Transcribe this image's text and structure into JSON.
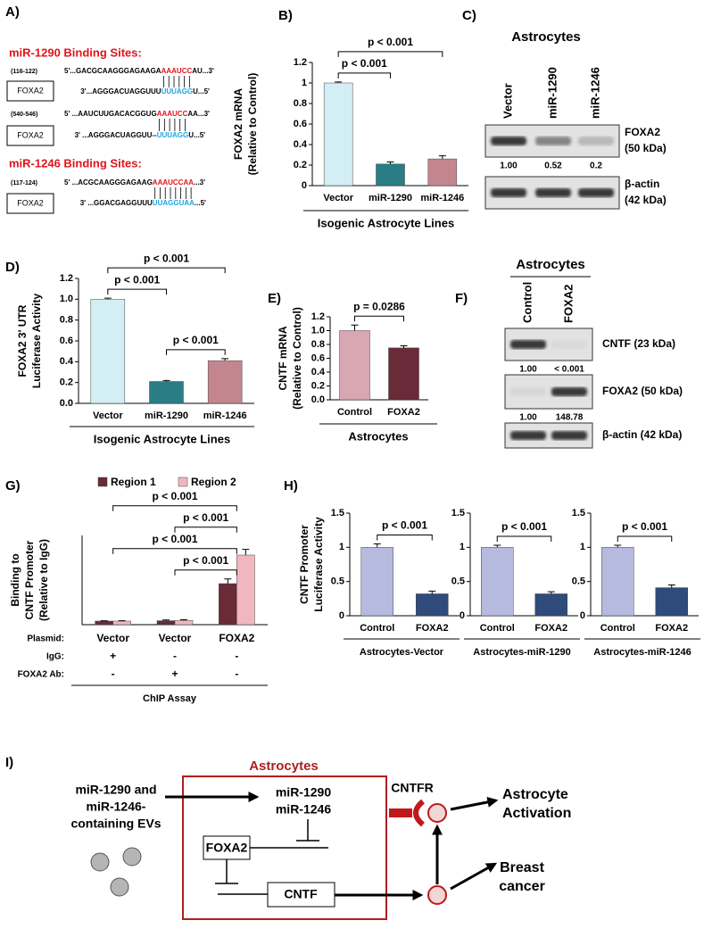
{
  "chart_data": [
    {
      "label": "B)",
      "type": "bar",
      "categories": [
        "Vector",
        "miR-1290",
        "miR-1246"
      ],
      "values": [
        1.0,
        0.21,
        0.26
      ],
      "errors": [
        0.01,
        0.02,
        0.03
      ],
      "colors": [
        "#d3eef5",
        "#2b7d85",
        "#c3868f"
      ],
      "ylabel": [
        "FOXA2 mRNA",
        "(Relative to Control)"
      ],
      "xlabel": "Isogenic Astrocyte Lines",
      "ylim": [
        0,
        1.2
      ],
      "yticks": [
        0,
        0.2,
        0.4,
        0.6,
        0.8,
        1,
        1.2
      ],
      "annotations": [
        {
          "text": "p < 0.001",
          "from": 0,
          "to": 1
        },
        {
          "text": "p < 0.001",
          "from": 0,
          "to": 2
        }
      ]
    },
    {
      "label": "D)",
      "type": "bar",
      "categories": [
        "Vector",
        "miR-1290",
        "miR-1246"
      ],
      "values": [
        1.0,
        0.21,
        0.41
      ],
      "errors": [
        0.01,
        0.01,
        0.02
      ],
      "colors": [
        "#d3eef5",
        "#2b7d85",
        "#c3868f"
      ],
      "ylabel": [
        "FOXA2 3' UTR",
        "Luciferase Activity"
      ],
      "xlabel": "Isogenic Astrocyte Lines",
      "ylim": [
        0,
        1.2
      ],
      "yticks": [
        {
          "value": 0,
          "label": "0.0"
        },
        0.2,
        0.4,
        0.6,
        0.8,
        {
          "value": 1,
          "label": "1.0"
        },
        1.2
      ],
      "annotations": [
        {
          "text": "p < 0.001",
          "from": 0,
          "to": 1
        },
        {
          "text": "p < 0.001",
          "from": 1,
          "to": 2
        },
        {
          "text": "p < 0.001",
          "from": 0,
          "to": 2
        }
      ]
    },
    {
      "label": "E)",
      "type": "bar",
      "categories": [
        "Control",
        "FOXA2"
      ],
      "values": [
        1.0,
        0.75
      ],
      "errors": [
        0.08,
        0.03
      ],
      "colors": [
        "#d8a7b1",
        "#6a2a38"
      ],
      "ylabel": [
        "CNTF mRNA",
        "(Relative to Control)"
      ],
      "xlabel": "Astrocytes",
      "ylim": [
        0,
        1.2
      ],
      "yticks": [
        {
          "value": 0,
          "label": "0.0"
        },
        0.2,
        0.4,
        0.6,
        0.8,
        {
          "value": 1,
          "label": "1.0"
        },
        1.2
      ],
      "annotations": [
        {
          "text": "p = 0.0286",
          "from": 0,
          "to": 1
        }
      ]
    },
    {
      "label": "G)",
      "type": "grouped_bar",
      "series": [
        {
          "name": "Region 1",
          "color": "#6a2a38",
          "values": [
            1.0,
            1.1,
            11.5
          ],
          "errors": [
            0.1,
            0.2,
            1.3
          ]
        },
        {
          "name": "Region 2",
          "color": "#f2b6be",
          "values": [
            1.0,
            1.2,
            19.5
          ],
          "errors": [
            0.1,
            0.2,
            1.6
          ]
        }
      ],
      "rows": [
        {
          "label": "Plasmid:",
          "cells": [
            "Vector",
            "Vector",
            "FOXA2"
          ]
        },
        {
          "label": "IgG:",
          "cells": [
            "+",
            "-",
            "-"
          ]
        },
        {
          "label": "FOXA2 Ab:",
          "cells": [
            "-",
            "+",
            "-"
          ]
        }
      ],
      "ylabel": [
        "Binding to",
        "CNTF Promoter",
        "(Relative to IgG)"
      ],
      "xlabel": "ChIP Assay",
      "ylim": [
        0,
        25
      ],
      "annotations": [
        {
          "text": "p < 0.001",
          "from": 1,
          "to": 2,
          "series": 0
        },
        {
          "text": "p < 0.001",
          "from": 0,
          "to": 2,
          "series": 0
        },
        {
          "text": "p < 0.001",
          "from": 1,
          "to": 2,
          "series": 1
        },
        {
          "text": "p < 0.001",
          "from": 0,
          "to": 2,
          "series": 1
        }
      ]
    },
    {
      "label": "H)",
      "type": "bar",
      "categories": [
        "Control",
        "FOXA2"
      ],
      "values": [
        1.0,
        0.32
      ],
      "errors": [
        0.05,
        0.04
      ],
      "colors": [
        "#b6badf",
        "#2f4b7c"
      ],
      "ylabel": [
        "CNTF Promoter",
        "Luciferase Activity"
      ],
      "xlabel": "Astrocytes-Vector",
      "ylim": [
        0,
        1.5
      ],
      "yticks": [
        0,
        0.5,
        1,
        1.5
      ],
      "annotations": [
        {
          "text": "p < 0.001",
          "from": 0,
          "to": 1
        }
      ]
    },
    {
      "type": "bar",
      "categories": [
        "Control",
        "FOXA2"
      ],
      "values": [
        1.0,
        0.32
      ],
      "errors": [
        0.03,
        0.03
      ],
      "colors": [
        "#b6badf",
        "#2f4b7c"
      ],
      "xlabel": "Astrocytes-miR-1290",
      "ylim": [
        0,
        1.5
      ],
      "yticks": [
        0,
        0.5,
        1,
        1.5
      ],
      "annotations": [
        {
          "text": "p < 0.001",
          "from": 0,
          "to": 1
        }
      ]
    },
    {
      "type": "bar",
      "categories": [
        "Control",
        "FOXA2"
      ],
      "values": [
        1.0,
        0.41
      ],
      "errors": [
        0.03,
        0.04
      ],
      "colors": [
        "#b6badf",
        "#2f4b7c"
      ],
      "xlabel": "Astrocytes-miR-1246",
      "ylim": [
        0,
        1.5
      ],
      "yticks": [
        0,
        0.5,
        1,
        1.5
      ],
      "annotations": [
        {
          "text": "p < 0.001",
          "from": 0,
          "to": 1
        }
      ]
    }
  ],
  "panel_a": {
    "label": "A)",
    "sections": [
      {
        "title": "miR-1290 Binding Sites:",
        "sites": [
          {
            "range": "(116-122)",
            "gene": "FOXA2",
            "utr": [
              "5'...GACGCAAGGGAGAAGA",
              "AAAUCC",
              "AU...3'"
            ],
            "mirna": [
              "3'...AGGGACUAGGUUU",
              "UUUAGG",
              "U...5'"
            ]
          },
          {
            "range": "(540-546)",
            "gene": "FOXA2",
            "utr": [
              "5' ...AAUCUUGACACGGUG",
              "AAAUCC",
              "AA...3'"
            ],
            "mirna": [
              "3' ...AGGGACUAGGUU--",
              "UUUAGG",
              "U...5'"
            ]
          }
        ]
      },
      {
        "title": "miR-1246 Binding Sites:",
        "sites": [
          {
            "range": "(117-124)",
            "gene": "FOXA2",
            "utr": [
              "5' ...ACGCAAGGGAGAAG",
              "AAAUCCAA",
              "...3'"
            ],
            "mirna": [
              "3' ...GGACGAGGUUU",
              "UUAGGUAA",
              "...5'"
            ]
          }
        ]
      }
    ]
  },
  "panel_c": {
    "label": "C)",
    "title": "Astrocytes",
    "lanes": [
      "Vector",
      "miR-1290",
      "miR-1246"
    ],
    "rows": [
      {
        "label": [
          "FOXA2",
          "(50 kDa)"
        ],
        "quant": [
          "1.00",
          "0.52",
          "0.2"
        ]
      },
      {
        "label": [
          "β-actin",
          "(42 kDa)"
        ]
      }
    ]
  },
  "panel_f": {
    "label": "F)",
    "title": "Astrocytes",
    "lanes": [
      "Control",
      "FOXA2"
    ],
    "rows": [
      {
        "label": [
          "CNTF (23 kDa)"
        ],
        "quant": [
          "1.00",
          "< 0.001"
        ]
      },
      {
        "label": [
          "FOXA2 (50 kDa)"
        ],
        "quant": [
          "1.00",
          "148.78"
        ]
      },
      {
        "label": [
          "β-actin (42 kDa)"
        ]
      }
    ]
  },
  "panel_i": {
    "label": "I)",
    "box_title": "Astrocytes",
    "source": [
      "miR-1290 and",
      "miR-1246-",
      "containing EVs"
    ],
    "mirnas": [
      "miR-1290",
      "miR-1246"
    ],
    "foxa2": "FOXA2",
    "cntf": "CNTF",
    "receptor": "CNTFR",
    "outcome1": [
      "Astrocyte",
      "Activation"
    ],
    "outcome2": [
      "Breast",
      "cancer"
    ]
  }
}
